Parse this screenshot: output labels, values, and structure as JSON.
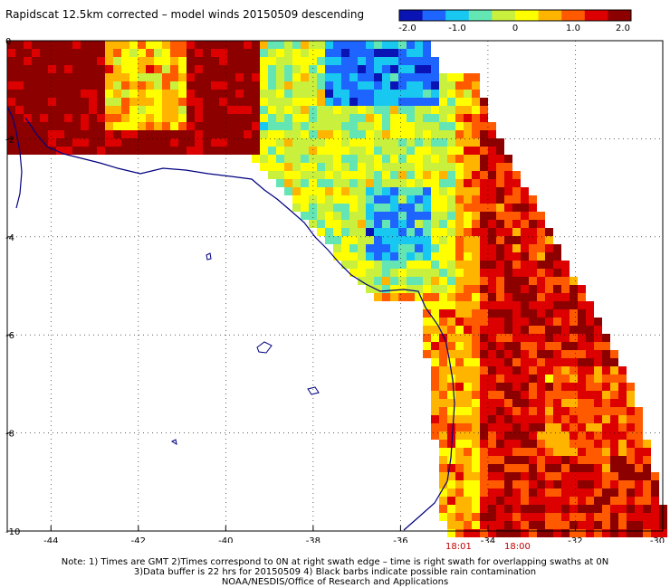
{
  "title": "Rapidscat 12.5km corrected – model winds 20150509 descending",
  "colorbar": {
    "range": [
      -2.0,
      2.0
    ],
    "ticks": [
      "-2.0",
      "-1.0",
      "0",
      "1.0",
      "2.0"
    ],
    "colors": [
      "#0a14b4",
      "#1e64ff",
      "#19c8f0",
      "#64e6b4",
      "#c8f03c",
      "#ffff00",
      "#ffb400",
      "#ff5a00",
      "#dc0000",
      "#8c0000"
    ]
  },
  "map": {
    "lon_range": [
      -45,
      -30
    ],
    "lat_range": [
      -10,
      0
    ],
    "x_ticks": [
      "-44",
      "-42",
      "-40",
      "-38",
      "-36",
      "-34",
      "-32",
      "-30"
    ],
    "y_ticks": [
      "0",
      "-2",
      "-4",
      "-6",
      "-8",
      "-10"
    ],
    "coastline_color": "#000080"
  },
  "times": [
    "18:01",
    "18:00"
  ],
  "notes": [
    "Note: 1) Times are GMT 2)Times correspond to 0N at right swath edge – time is right swath for overlapping swaths at 0N",
    "3)Data buffer is 22 hrs for 20150509 4) Black barbs indicate possible rain contamination",
    "NOAA/NESDIS/Office of Research and Applications"
  ]
}
